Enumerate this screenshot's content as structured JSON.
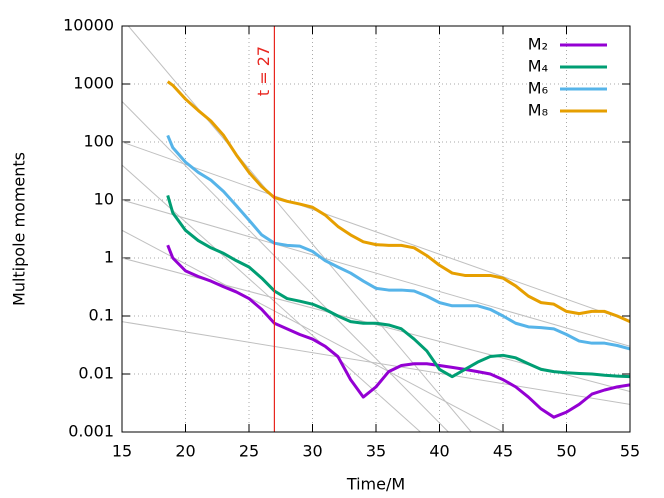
{
  "chart_data": {
    "type": "line",
    "x_label": "Time/M",
    "y_label": "Multipole moments",
    "log_y": true,
    "grid": true,
    "legend": "top-right",
    "xlim": [
      15,
      55
    ],
    "xticks": [
      15,
      20,
      25,
      30,
      35,
      40,
      45,
      50,
      55
    ],
    "ylim": [
      0.001,
      10000
    ],
    "yticks": [
      0.001,
      0.01,
      0.1,
      1,
      10,
      100,
      1000,
      10000
    ],
    "x": [
      18.6,
      19,
      20,
      21,
      22,
      23,
      24,
      25,
      26,
      27,
      28,
      29,
      30,
      31,
      32,
      33,
      34,
      35,
      36,
      37,
      38,
      39,
      40,
      41,
      42,
      43,
      44,
      45,
      46,
      47,
      48,
      49,
      50,
      51,
      52,
      53,
      54,
      55
    ],
    "series": [
      {
        "name": "M₂",
        "color": "#9400d3",
        "values": [
          1.66,
          1.0,
          0.6,
          0.48,
          0.4,
          0.32,
          0.26,
          0.2,
          0.13,
          0.075,
          0.06,
          0.048,
          0.04,
          0.03,
          0.02,
          0.008,
          0.004,
          0.006,
          0.011,
          0.014,
          0.015,
          0.015,
          0.014,
          0.013,
          0.012,
          0.011,
          0.01,
          0.008,
          0.006,
          0.004,
          0.0025,
          0.0018,
          0.0022,
          0.003,
          0.0045,
          0.0053,
          0.006,
          0.0065
        ]
      },
      {
        "name": "M₄",
        "color": "#009e73",
        "values": [
          12,
          6,
          3,
          2,
          1.5,
          1.2,
          0.9,
          0.7,
          0.45,
          0.27,
          0.2,
          0.18,
          0.16,
          0.13,
          0.1,
          0.08,
          0.075,
          0.075,
          0.07,
          0.06,
          0.04,
          0.025,
          0.012,
          0.009,
          0.012,
          0.016,
          0.02,
          0.021,
          0.019,
          0.015,
          0.012,
          0.011,
          0.0105,
          0.0102,
          0.01,
          0.0095,
          0.0092,
          0.009
        ]
      },
      {
        "name": "M₆",
        "color": "#56b4e9",
        "values": [
          130,
          80,
          45,
          30,
          22,
          14,
          8,
          4.5,
          2.5,
          1.8,
          1.65,
          1.6,
          1.3,
          0.9,
          0.7,
          0.55,
          0.4,
          0.3,
          0.28,
          0.28,
          0.27,
          0.22,
          0.17,
          0.15,
          0.15,
          0.15,
          0.13,
          0.1,
          0.075,
          0.065,
          0.063,
          0.06,
          0.048,
          0.037,
          0.034,
          0.034,
          0.031,
          0.027
        ]
      },
      {
        "name": "M₈",
        "color": "#e69f00",
        "values": [
          1100,
          950,
          550,
          350,
          230,
          130,
          60,
          30,
          17,
          11,
          9.5,
          8.5,
          7.5,
          5.5,
          3.5,
          2.5,
          1.9,
          1.7,
          1.65,
          1.65,
          1.5,
          1.1,
          0.75,
          0.55,
          0.5,
          0.5,
          0.5,
          0.45,
          0.33,
          0.22,
          0.17,
          0.16,
          0.12,
          0.11,
          0.12,
          0.12,
          0.1,
          0.08
        ]
      }
    ],
    "reference_color": "#c0c0c0",
    "reference_lines": [
      {
        "x": [
          15.5,
          42.5
        ],
        "values": [
          10000,
          0.001
        ]
      },
      {
        "x": [
          15,
          40.7
        ],
        "values": [
          500,
          0.001
        ]
      },
      {
        "x": [
          15,
          55
        ],
        "values": [
          100,
          0.08
        ]
      },
      {
        "x": [
          15,
          38.5
        ],
        "values": [
          40,
          0.001
        ]
      },
      {
        "x": [
          15,
          55
        ],
        "values": [
          10,
          0.03
        ]
      },
      {
        "x": [
          15,
          45
        ],
        "values": [
          3,
          0.001
        ]
      },
      {
        "x": [
          15,
          55
        ],
        "values": [
          1,
          0.005
        ]
      },
      {
        "x": [
          15,
          55
        ],
        "values": [
          0.08,
          0.003
        ]
      }
    ],
    "annotation": {
      "x": 27,
      "text": "t = 27",
      "color": "#e8261f"
    }
  }
}
